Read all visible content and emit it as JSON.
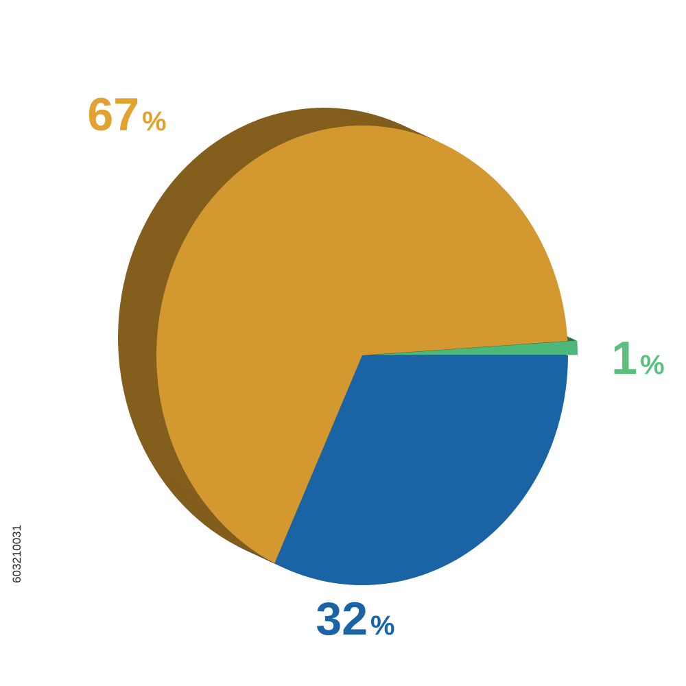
{
  "chart_data": {
    "type": "pie",
    "values": [
      32,
      67,
      1
    ],
    "value_labels": [
      "32%",
      "67%",
      "1%"
    ],
    "colors": [
      "#1a63a5",
      "#d3982f",
      "#4db87a"
    ],
    "label_colors": [
      "#1a63a5",
      "#e3a12f",
      "#5cbf7f"
    ]
  },
  "watermark_id": "603210031"
}
